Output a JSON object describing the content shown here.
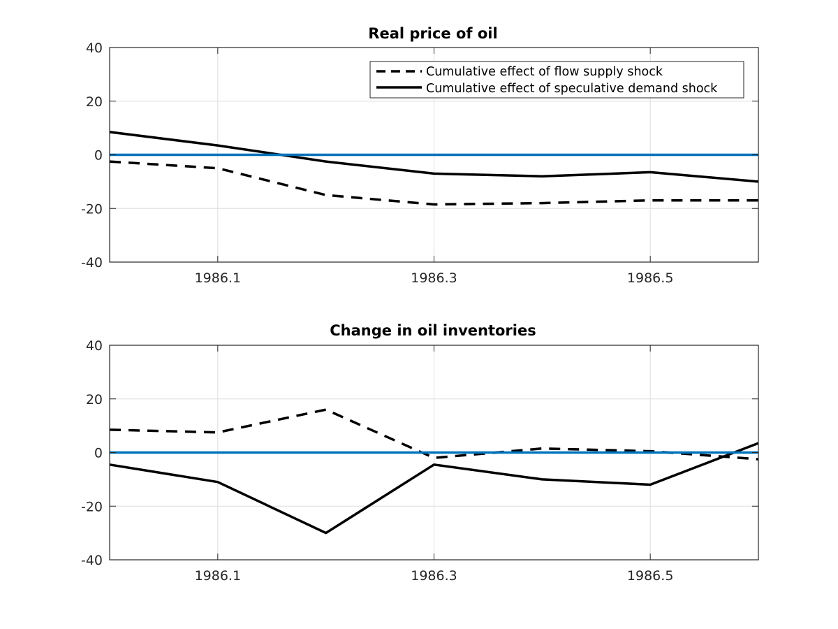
{
  "chart_data": [
    {
      "type": "line",
      "title": "Real price of oil",
      "xlabel": "",
      "ylabel": "",
      "xlim": [
        1986.0,
        1986.6
      ],
      "ylim": [
        -40,
        40
      ],
      "xticks": [
        1986.1,
        1986.3,
        1986.5
      ],
      "xtick_labels": [
        "1986.1",
        "1986.3",
        "1986.5"
      ],
      "yticks": [
        -40,
        -20,
        0,
        20,
        40
      ],
      "ytick_labels": [
        "-40",
        "-20",
        "0",
        "20",
        "40"
      ],
      "grid": true,
      "legend_position": "top-right",
      "x": [
        1986.0,
        1986.1,
        1986.2,
        1986.3,
        1986.4,
        1986.5,
        1986.6
      ],
      "series": [
        {
          "name": "Cumulative effect of flow supply shock",
          "style": "dashed",
          "color": "#000000",
          "values": [
            -2.5,
            -5,
            -15,
            -18.5,
            -18,
            -17,
            -17
          ]
        },
        {
          "name": "Cumulative effect of speculative demand shock",
          "style": "solid",
          "color": "#000000",
          "values": [
            8.5,
            3.5,
            -2.5,
            -7,
            -8,
            -6.5,
            -10
          ]
        },
        {
          "style": "solid",
          "color": "#0072bd",
          "values": [
            0,
            0,
            0,
            0,
            0,
            0,
            0
          ]
        }
      ]
    },
    {
      "type": "line",
      "title": "Change in oil inventories",
      "xlabel": "",
      "ylabel": "",
      "xlim": [
        1986.0,
        1986.6
      ],
      "ylim": [
        -40,
        40
      ],
      "xticks": [
        1986.1,
        1986.3,
        1986.5
      ],
      "xtick_labels": [
        "1986.1",
        "1986.3",
        "1986.5"
      ],
      "yticks": [
        -40,
        -20,
        0,
        20,
        40
      ],
      "ytick_labels": [
        "-40",
        "-20",
        "0",
        "20",
        "40"
      ],
      "grid": true,
      "x": [
        1986.0,
        1986.1,
        1986.2,
        1986.3,
        1986.4,
        1986.5,
        1986.6
      ],
      "series": [
        {
          "name": "Cumulative effect of flow supply shock",
          "style": "dashed",
          "color": "#000000",
          "values": [
            8.5,
            7.5,
            16,
            -2,
            1.5,
            0.5,
            -2.5
          ]
        },
        {
          "name": "Cumulative effect of speculative demand shock",
          "style": "solid",
          "color": "#000000",
          "values": [
            -4.5,
            -11,
            -30,
            -4.5,
            -10,
            -12,
            3.5
          ]
        },
        {
          "style": "solid",
          "color": "#0072bd",
          "values": [
            0,
            0,
            0,
            0,
            0,
            0,
            0
          ]
        }
      ]
    }
  ]
}
